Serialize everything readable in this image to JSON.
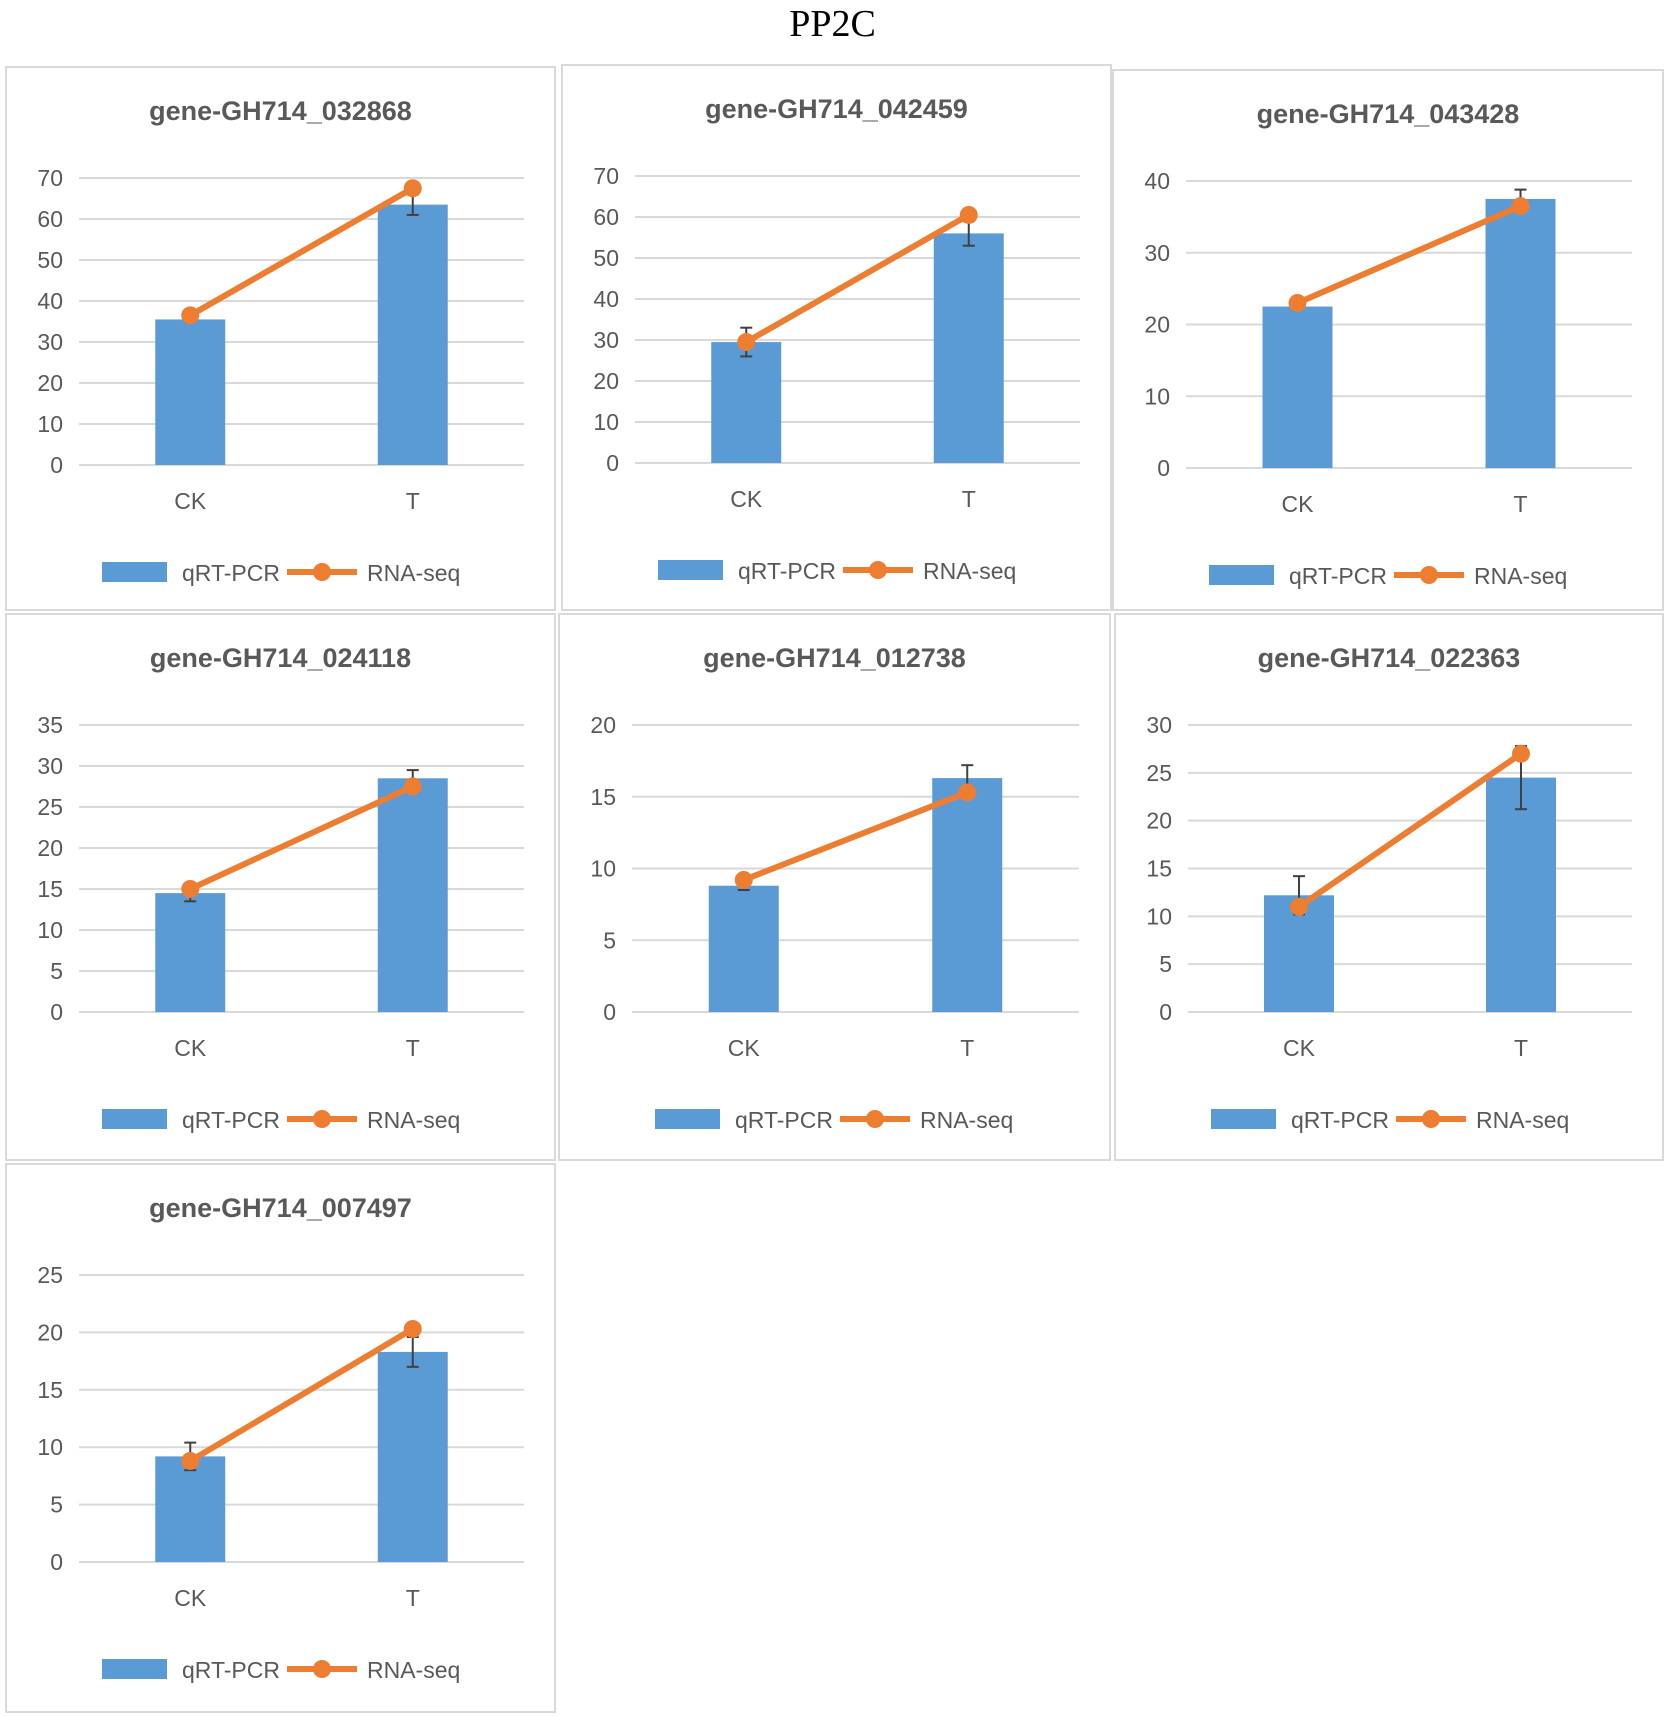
{
  "figure_title": "PP2C",
  "legend": {
    "bar_label": "qRT-PCR",
    "line_label": "RNA-seq"
  },
  "colors": {
    "bar": "#5b9bd5",
    "line": "#ed7d31",
    "grid": "#d9d9d9",
    "text": "#595959",
    "error": "#404040"
  },
  "chart_data": [
    {
      "type": "bar",
      "title": "gene-GH714_032868",
      "categories": [
        "CK",
        "T"
      ],
      "series": [
        {
          "name": "qRT-PCR",
          "type": "bar",
          "values": [
            35.5,
            63.5
          ],
          "error": [
            0.5,
            2.5
          ]
        },
        {
          "name": "RNA-seq",
          "type": "line",
          "values": [
            36.5,
            67.5
          ]
        }
      ],
      "ylim": [
        0,
        70
      ],
      "yticks": [
        0,
        10,
        20,
        30,
        40,
        50,
        60,
        70
      ]
    },
    {
      "type": "bar",
      "title": "gene-GH714_042459",
      "categories": [
        "CK",
        "T"
      ],
      "series": [
        {
          "name": "qRT-PCR",
          "type": "bar",
          "values": [
            29.5,
            56
          ],
          "error": [
            3.5,
            3
          ]
        },
        {
          "name": "RNA-seq",
          "type": "line",
          "values": [
            29.5,
            60.5
          ]
        }
      ],
      "ylim": [
        0,
        70
      ],
      "yticks": [
        0,
        10,
        20,
        30,
        40,
        50,
        60,
        70
      ]
    },
    {
      "type": "bar",
      "title": "gene-GH714_043428",
      "categories": [
        "CK",
        "T"
      ],
      "series": [
        {
          "name": "qRT-PCR",
          "type": "bar",
          "values": [
            22.5,
            37.5
          ],
          "error": [
            0.3,
            1.3
          ]
        },
        {
          "name": "RNA-seq",
          "type": "line",
          "values": [
            23,
            36.5
          ]
        }
      ],
      "ylim": [
        0,
        40
      ],
      "yticks": [
        0,
        10,
        20,
        30,
        40
      ]
    },
    {
      "type": "bar",
      "title": "gene-GH714_024118",
      "categories": [
        "CK",
        "T"
      ],
      "series": [
        {
          "name": "qRT-PCR",
          "type": "bar",
          "values": [
            14.5,
            28.5
          ],
          "error": [
            1,
            1
          ]
        },
        {
          "name": "RNA-seq",
          "type": "line",
          "values": [
            15,
            27.5
          ]
        }
      ],
      "ylim": [
        0,
        35
      ],
      "yticks": [
        0,
        5,
        10,
        15,
        20,
        25,
        30,
        35
      ]
    },
    {
      "type": "bar",
      "title": "gene-GH714_012738",
      "categories": [
        "CK",
        "T"
      ],
      "series": [
        {
          "name": "qRT-PCR",
          "type": "bar",
          "values": [
            8.8,
            16.3
          ],
          "error": [
            0.3,
            0.9
          ]
        },
        {
          "name": "RNA-seq",
          "type": "line",
          "values": [
            9.2,
            15.3
          ]
        }
      ],
      "ylim": [
        0,
        20
      ],
      "yticks": [
        0,
        5,
        10,
        15,
        20
      ]
    },
    {
      "type": "bar",
      "title": "gene-GH714_022363",
      "categories": [
        "CK",
        "T"
      ],
      "series": [
        {
          "name": "qRT-PCR",
          "type": "bar",
          "values": [
            12.2,
            24.5
          ],
          "error": [
            2,
            3.3
          ]
        },
        {
          "name": "RNA-seq",
          "type": "line",
          "values": [
            11,
            27
          ]
        }
      ],
      "ylim": [
        0,
        30
      ],
      "yticks": [
        0,
        5,
        10,
        15,
        20,
        25,
        30
      ]
    },
    {
      "type": "bar",
      "title": "gene-GH714_007497",
      "categories": [
        "CK",
        "T"
      ],
      "series": [
        {
          "name": "qRT-PCR",
          "type": "bar",
          "values": [
            9.2,
            18.3
          ],
          "error": [
            1.2,
            1.3
          ]
        },
        {
          "name": "RNA-seq",
          "type": "line",
          "values": [
            8.8,
            20.3
          ]
        }
      ],
      "ylim": [
        0,
        25
      ],
      "yticks": [
        0,
        5,
        10,
        15,
        20,
        25
      ]
    }
  ]
}
